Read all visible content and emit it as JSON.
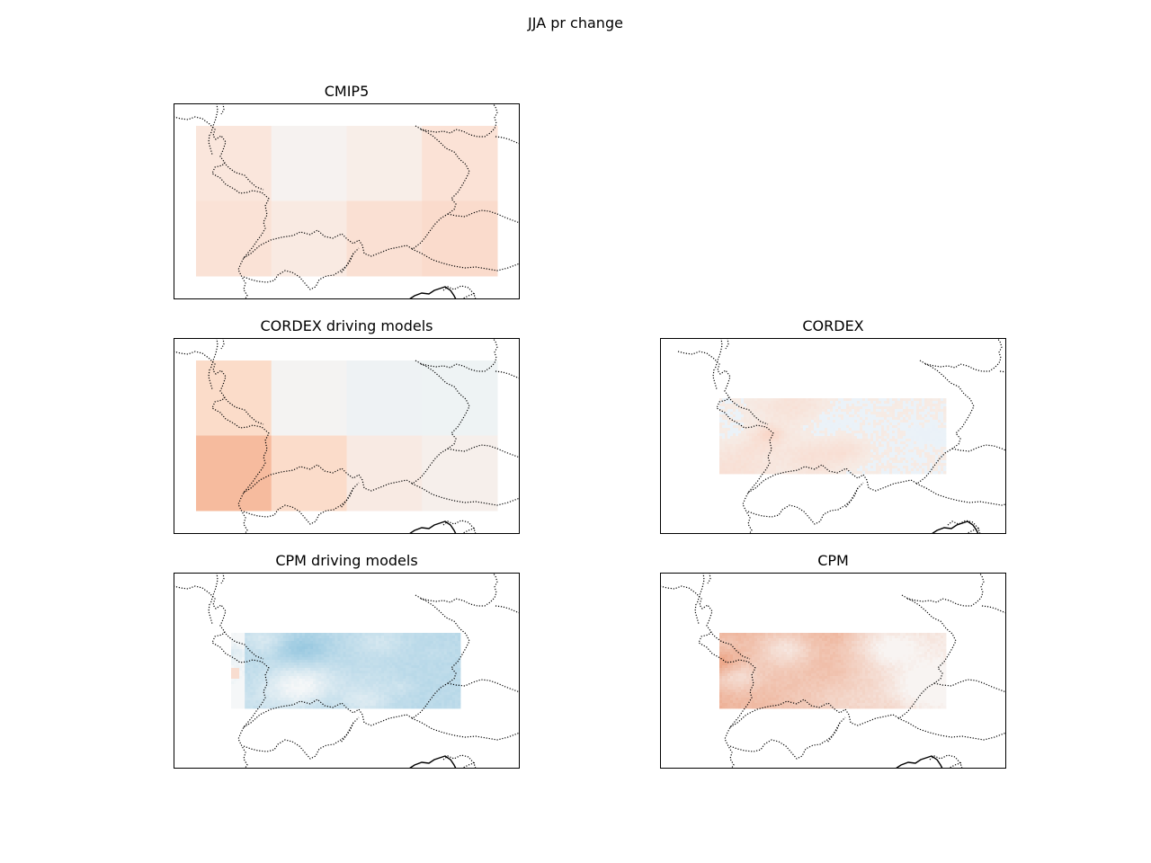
{
  "figure": {
    "title": "JJA pr change"
  },
  "panels": [
    {
      "id": "cmip5",
      "title": "CMIP5",
      "domain": "coarse",
      "grid": {
        "cols": 4,
        "rows": 2,
        "colors": [
          [
            "#fae6dc",
            "#f6f2f0",
            "#f8eee8",
            "#fbe2d6"
          ],
          [
            "#fae2d6",
            "#f9eae2",
            "#fae0d3",
            "#fadbcc"
          ]
        ]
      },
      "borders": "standard"
    },
    {
      "id": "cordex-driving",
      "title": "CORDEX driving models",
      "domain": "coarse",
      "grid": {
        "cols": 4,
        "rows": 2,
        "colors": [
          [
            "#fbdcc9",
            "#f4f3f2",
            "#eef2f4",
            "#eef3f4"
          ],
          [
            "#f6bb9e",
            "#fbdcca",
            "#f8eae3",
            "#f6efeb"
          ]
        ]
      },
      "borders": "standard"
    },
    {
      "id": "cordex",
      "title": "CORDEX",
      "domain": "fine-east",
      "field": {
        "style": "mixed-light",
        "seed": 7
      },
      "borders": "shifted"
    },
    {
      "id": "cpm-driving",
      "title": "CPM driving models",
      "domain": "fine-west",
      "field": {
        "style": "blue",
        "seed": 13
      },
      "borders": "standard"
    },
    {
      "id": "cpm",
      "title": "CPM",
      "domain": "fine-east",
      "field": {
        "style": "red",
        "seed": 29
      },
      "borders": "standard"
    }
  ],
  "colors": {
    "dry": "#d6604d",
    "wet": "#4393c3",
    "neutral": "#f7f7f7",
    "frame": "#000000",
    "border": "#000000"
  }
}
